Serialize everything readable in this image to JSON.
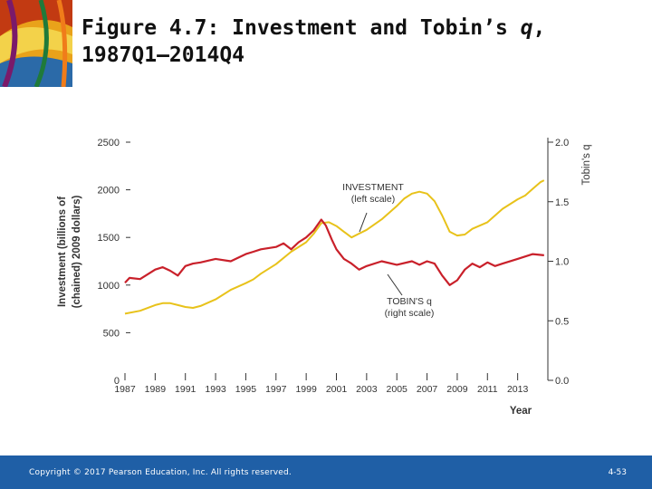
{
  "slide": {
    "title_prefix": "Figure 4.7: Investment and Tobin’s ",
    "title_q": "q",
    "title_suffix": ",",
    "title_line2": "1987Q1–2014Q4"
  },
  "footer": {
    "copyright": "Copyright © 2017 Pearson Education, Inc. All rights reserved.",
    "page": "4-53"
  },
  "colors": {
    "investment": "#e8c21a",
    "tobin": "#c9202a",
    "footer": "#1f5fa6",
    "axis": "#333333"
  },
  "chart_data": {
    "type": "line",
    "ylabel_left_1": "Investment (billions of",
    "ylabel_left_2": "(chained) 2009 dollars)",
    "ylabel_right": "Tobin's q",
    "xlabel": "Year",
    "y_left_ticks": [
      "2500",
      "2000",
      "1500",
      "1000",
      "500",
      "0"
    ],
    "y_right_ticks": [
      "2.0",
      "1.5",
      "1.0",
      "0.5",
      "0.0"
    ],
    "x_ticks": [
      "1987",
      "1989",
      "1991",
      "1993",
      "1995",
      "1997",
      "1999",
      "2001",
      "2003",
      "2005",
      "2007",
      "2009",
      "2011",
      "2013"
    ],
    "ylim_left": [
      0,
      2500
    ],
    "ylim_right": [
      0,
      2.0
    ],
    "xlim": [
      1987,
      2015
    ],
    "annotations": {
      "investment_1": "INVESTMENT",
      "investment_2": "(left scale)",
      "tobin_1": "TOBIN'S q",
      "tobin_2": "(right scale)"
    },
    "series": [
      {
        "name": "INVESTMENT",
        "axis": "left",
        "x": [
          1987.0,
          1988.0,
          1989.0,
          1989.5,
          1990.0,
          1990.5,
          1991.0,
          1991.5,
          1992.0,
          1993.0,
          1994.0,
          1995.0,
          1995.5,
          1996.0,
          1997.0,
          1998.0,
          1999.0,
          1999.5,
          2000.0,
          2000.5,
          2001.0,
          2001.5,
          2002.0,
          2002.5,
          2003.0,
          2004.0,
          2005.0,
          2005.5,
          2006.0,
          2006.5,
          2007.0,
          2007.5,
          2008.0,
          2008.5,
          2009.0,
          2009.5,
          2010.0,
          2011.0,
          2012.0,
          2013.0,
          2013.5,
          2014.0,
          2014.5,
          2014.75
        ],
        "values": [
          700,
          730,
          790,
          810,
          810,
          790,
          770,
          760,
          780,
          850,
          950,
          1020,
          1060,
          1120,
          1220,
          1350,
          1450,
          1540,
          1650,
          1660,
          1620,
          1560,
          1500,
          1540,
          1580,
          1690,
          1830,
          1910,
          1960,
          1980,
          1960,
          1880,
          1730,
          1560,
          1520,
          1530,
          1590,
          1660,
          1800,
          1900,
          1940,
          2010,
          2080,
          2100
        ]
      },
      {
        "name": "TOBIN'S q",
        "axis": "right",
        "x": [
          1987.0,
          1987.3,
          1988.0,
          1989.0,
          1989.5,
          1990.0,
          1990.5,
          1991.0,
          1991.5,
          1992.0,
          1993.0,
          1994.0,
          1995.0,
          1995.5,
          1996.0,
          1997.0,
          1997.5,
          1998.0,
          1998.5,
          1999.0,
          1999.5,
          2000.0,
          2000.3,
          2000.7,
          2001.0,
          2001.5,
          2002.0,
          2002.5,
          2003.0,
          2004.0,
          2005.0,
          2006.0,
          2006.5,
          2007.0,
          2007.5,
          2008.0,
          2008.5,
          2009.0,
          2009.5,
          2010.0,
          2010.5,
          2011.0,
          2011.5,
          2012.0,
          2013.0,
          2014.0,
          2014.75
        ],
        "values": [
          0.82,
          0.86,
          0.85,
          0.93,
          0.95,
          0.92,
          0.88,
          0.96,
          0.98,
          0.99,
          1.02,
          1.0,
          1.06,
          1.08,
          1.1,
          1.12,
          1.15,
          1.1,
          1.16,
          1.2,
          1.26,
          1.35,
          1.3,
          1.18,
          1.1,
          1.02,
          0.98,
          0.93,
          0.96,
          1.0,
          0.97,
          1.0,
          0.97,
          1.0,
          0.98,
          0.88,
          0.8,
          0.84,
          0.93,
          0.98,
          0.95,
          0.99,
          0.96,
          0.98,
          1.02,
          1.06,
          1.05
        ]
      }
    ]
  }
}
